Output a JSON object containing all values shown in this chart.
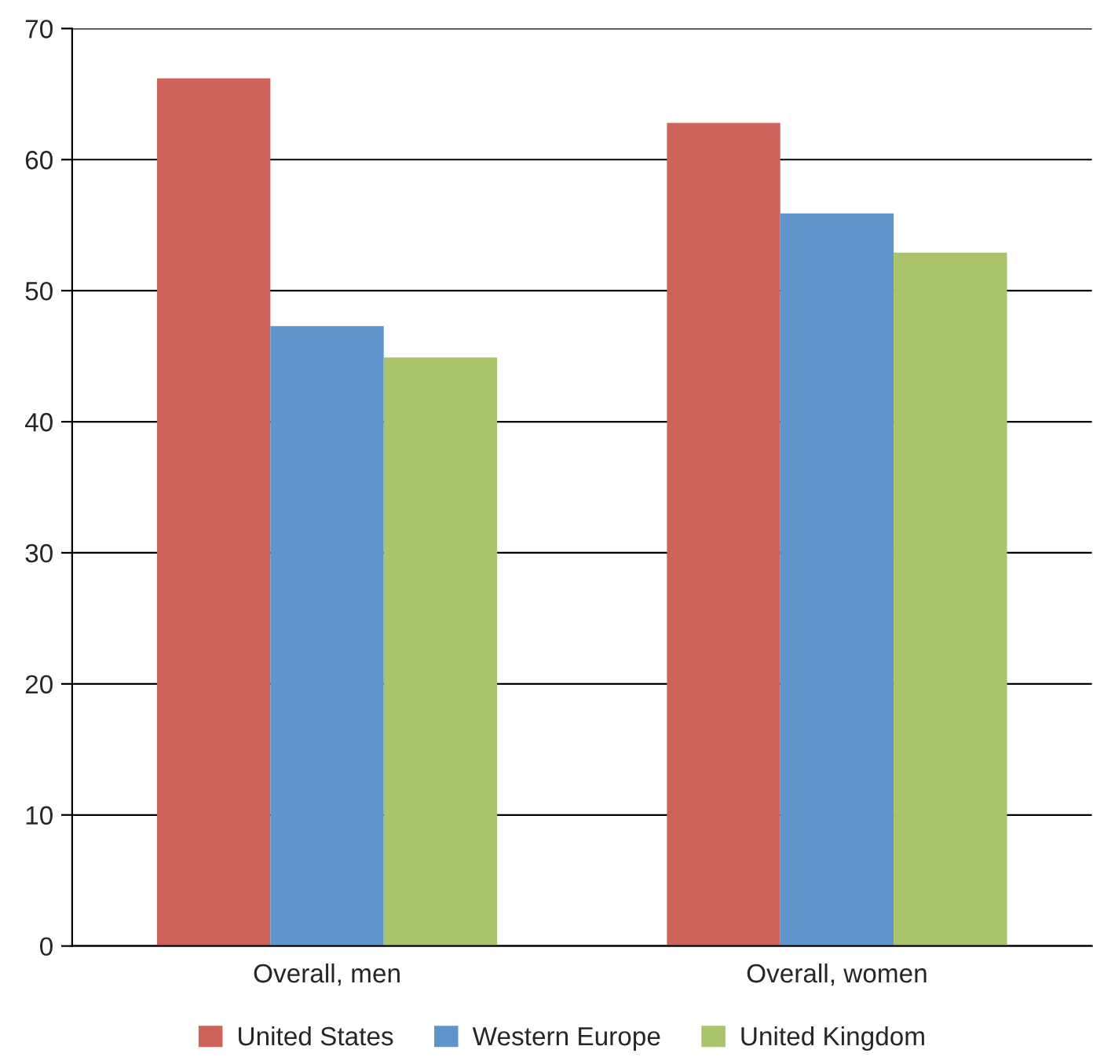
{
  "chart_data": {
    "type": "bar",
    "categories": [
      "Overall, men",
      "Overall, women"
    ],
    "series": [
      {
        "name": "United States",
        "color": "#cd635a",
        "values": [
          66.2,
          62.8
        ]
      },
      {
        "name": "Western Europe",
        "color": "#5e96cb",
        "values": [
          47.3,
          55.9
        ]
      },
      {
        "name": "United Kingdom",
        "color": "#a9c46b",
        "values": [
          44.9,
          52.9
        ]
      }
    ],
    "ylim": [
      0,
      70
    ],
    "yticks": [
      0,
      10,
      20,
      30,
      40,
      50,
      60,
      70
    ],
    "grid": "y",
    "legend": "bottom"
  }
}
